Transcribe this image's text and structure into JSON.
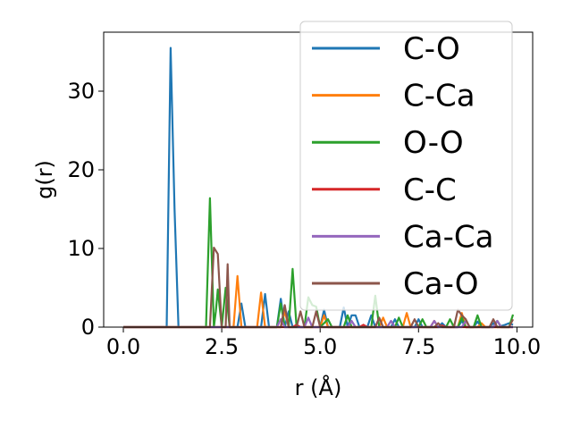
{
  "chart_data": {
    "type": "line",
    "title": "",
    "xlabel": "r (Å)",
    "ylabel": "g(r)",
    "xlim": [
      -0.5,
      10.4
    ],
    "ylim": [
      0,
      37.5
    ],
    "xticks": [
      0.0,
      2.5,
      5.0,
      7.5,
      10.0
    ],
    "xtick_labels": [
      "0.0",
      "2.5",
      "5.0",
      "7.5",
      "10.0"
    ],
    "yticks": [
      0,
      10,
      20,
      30
    ],
    "ytick_labels": [
      "0",
      "10",
      "20",
      "30"
    ],
    "legend_position": "top-right",
    "series": [
      {
        "name": "C-O",
        "color": "#1f77b4",
        "points": [
          [
            0.0,
            0
          ],
          [
            1.1,
            0
          ],
          [
            1.2,
            35.5
          ],
          [
            1.3,
            15
          ],
          [
            1.4,
            0
          ],
          [
            2.8,
            0
          ],
          [
            2.9,
            0
          ],
          [
            3.0,
            3.0
          ],
          [
            3.1,
            0
          ],
          [
            3.5,
            0
          ],
          [
            3.6,
            4.2
          ],
          [
            3.7,
            0
          ],
          [
            3.9,
            0
          ],
          [
            4.0,
            3.6
          ],
          [
            4.1,
            0
          ],
          [
            4.2,
            2.0
          ],
          [
            4.3,
            0
          ],
          [
            5.0,
            0
          ],
          [
            5.1,
            2.2
          ],
          [
            5.2,
            0
          ],
          [
            5.5,
            0
          ],
          [
            5.6,
            2.5
          ],
          [
            5.7,
            0
          ],
          [
            5.8,
            1.5
          ],
          [
            5.9,
            1.5
          ],
          [
            6.0,
            0
          ],
          [
            6.2,
            0
          ],
          [
            6.3,
            1.5
          ],
          [
            6.4,
            0
          ],
          [
            6.8,
            0
          ],
          [
            6.9,
            1.0
          ],
          [
            7.0,
            0
          ],
          [
            7.4,
            0
          ],
          [
            7.5,
            1.0
          ],
          [
            7.6,
            0
          ],
          [
            8.0,
            0
          ],
          [
            8.1,
            0.5
          ],
          [
            8.2,
            0
          ],
          [
            8.5,
            0
          ],
          [
            8.6,
            0.8
          ],
          [
            8.7,
            0
          ],
          [
            8.9,
            0
          ],
          [
            9.0,
            0.7
          ],
          [
            9.1,
            0
          ],
          [
            9.3,
            0
          ],
          [
            9.4,
            0.5
          ],
          [
            9.5,
            0
          ],
          [
            9.7,
            0.3
          ],
          [
            9.8,
            0.5
          ],
          [
            9.9,
            0.3
          ]
        ]
      },
      {
        "name": "C-Ca",
        "color": "#ff7f0e",
        "points": [
          [
            0.0,
            0
          ],
          [
            2.8,
            0
          ],
          [
            2.9,
            6.5
          ],
          [
            3.0,
            0
          ],
          [
            3.4,
            0
          ],
          [
            3.5,
            4.4
          ],
          [
            3.6,
            0
          ],
          [
            4.0,
            0
          ],
          [
            4.1,
            2.0
          ],
          [
            4.2,
            0
          ],
          [
            5.0,
            0
          ],
          [
            5.1,
            1.5
          ],
          [
            5.2,
            0
          ],
          [
            6.5,
            0
          ],
          [
            6.6,
            1.2
          ],
          [
            6.7,
            0
          ],
          [
            7.1,
            0
          ],
          [
            7.2,
            1.8
          ],
          [
            7.3,
            0
          ],
          [
            7.8,
            0
          ],
          [
            7.9,
            0.8
          ],
          [
            8.0,
            0
          ],
          [
            8.5,
            0
          ],
          [
            8.6,
            1.8
          ],
          [
            8.7,
            0
          ],
          [
            9.0,
            0
          ],
          [
            9.1,
            0.5
          ],
          [
            9.2,
            0
          ],
          [
            9.9,
            0
          ]
        ]
      },
      {
        "name": "O-O",
        "color": "#2ca02c",
        "points": [
          [
            0.0,
            0
          ],
          [
            2.1,
            0
          ],
          [
            2.2,
            16.4
          ],
          [
            2.3,
            0
          ],
          [
            2.35,
            2.0
          ],
          [
            2.4,
            4.8
          ],
          [
            2.5,
            0
          ],
          [
            2.6,
            5.0
          ],
          [
            2.7,
            0
          ],
          [
            3.9,
            0
          ],
          [
            4.0,
            3.0
          ],
          [
            4.1,
            0
          ],
          [
            4.2,
            0
          ],
          [
            4.3,
            7.4
          ],
          [
            4.4,
            0
          ],
          [
            4.6,
            0
          ],
          [
            4.7,
            3.8
          ],
          [
            4.8,
            2.8
          ],
          [
            4.9,
            2.6
          ],
          [
            5.0,
            0
          ],
          [
            5.2,
            1.0
          ],
          [
            5.3,
            0
          ],
          [
            5.6,
            0
          ],
          [
            5.7,
            1.5
          ],
          [
            5.8,
            0
          ],
          [
            6.3,
            0
          ],
          [
            6.4,
            4.0
          ],
          [
            6.5,
            0
          ],
          [
            6.9,
            0
          ],
          [
            7.0,
            1.2
          ],
          [
            7.1,
            0
          ],
          [
            7.5,
            0
          ],
          [
            7.6,
            1.0
          ],
          [
            7.7,
            0
          ],
          [
            8.2,
            0
          ],
          [
            8.3,
            1.0
          ],
          [
            8.4,
            0
          ],
          [
            8.5,
            0
          ],
          [
            8.6,
            1.2
          ],
          [
            8.7,
            0
          ],
          [
            8.9,
            0
          ],
          [
            9.0,
            1.5
          ],
          [
            9.1,
            0
          ],
          [
            9.4,
            0
          ],
          [
            9.5,
            0.8
          ],
          [
            9.6,
            0
          ],
          [
            9.8,
            0
          ],
          [
            9.9,
            1.6
          ]
        ]
      },
      {
        "name": "C-C",
        "color": "#d62728",
        "points": [
          [
            0.0,
            0
          ],
          [
            4.3,
            0
          ],
          [
            4.4,
            0.3
          ],
          [
            4.5,
            0
          ],
          [
            6.0,
            0
          ],
          [
            6.1,
            0.3
          ],
          [
            6.2,
            0
          ],
          [
            8.0,
            0
          ],
          [
            8.1,
            0.2
          ],
          [
            8.2,
            0
          ],
          [
            9.9,
            0
          ]
        ]
      },
      {
        "name": "Ca-Ca",
        "color": "#9467bd",
        "points": [
          [
            0.0,
            0
          ],
          [
            3.9,
            0
          ],
          [
            4.0,
            1.0
          ],
          [
            4.1,
            0
          ],
          [
            4.6,
            0
          ],
          [
            4.7,
            1.2
          ],
          [
            4.8,
            0
          ],
          [
            5.7,
            0
          ],
          [
            5.8,
            0.8
          ],
          [
            5.9,
            0
          ],
          [
            6.7,
            0
          ],
          [
            6.8,
            0.8
          ],
          [
            6.9,
            0
          ],
          [
            7.8,
            0
          ],
          [
            7.9,
            0.8
          ],
          [
            8.0,
            0
          ],
          [
            8.6,
            0
          ],
          [
            8.7,
            0.8
          ],
          [
            8.8,
            0
          ],
          [
            9.4,
            0
          ],
          [
            9.5,
            0.8
          ],
          [
            9.6,
            0
          ],
          [
            9.9,
            0
          ]
        ]
      },
      {
        "name": "Ca-O",
        "color": "#8c564b",
        "points": [
          [
            0.0,
            0
          ],
          [
            2.2,
            0
          ],
          [
            2.3,
            10.1
          ],
          [
            2.4,
            9.3
          ],
          [
            2.5,
            0
          ],
          [
            2.6,
            0
          ],
          [
            2.65,
            8.0
          ],
          [
            2.7,
            0
          ],
          [
            4.0,
            0
          ],
          [
            4.1,
            2.8
          ],
          [
            4.2,
            0
          ],
          [
            4.4,
            0
          ],
          [
            4.5,
            2.0
          ],
          [
            4.6,
            0
          ],
          [
            4.8,
            0
          ],
          [
            4.9,
            2.0
          ],
          [
            5.0,
            0
          ],
          [
            6.4,
            0
          ],
          [
            6.5,
            1.2
          ],
          [
            6.6,
            0
          ],
          [
            7.3,
            0
          ],
          [
            7.4,
            1.0
          ],
          [
            7.5,
            0
          ],
          [
            7.9,
            0
          ],
          [
            8.0,
            0.5
          ],
          [
            8.1,
            0
          ],
          [
            8.4,
            0
          ],
          [
            8.5,
            2.2
          ],
          [
            8.6,
            1.5
          ],
          [
            8.7,
            1.0
          ],
          [
            8.8,
            0
          ],
          [
            9.3,
            0
          ],
          [
            9.4,
            1.0
          ],
          [
            9.5,
            0
          ],
          [
            9.8,
            0
          ],
          [
            9.9,
            1.0
          ]
        ]
      }
    ]
  }
}
